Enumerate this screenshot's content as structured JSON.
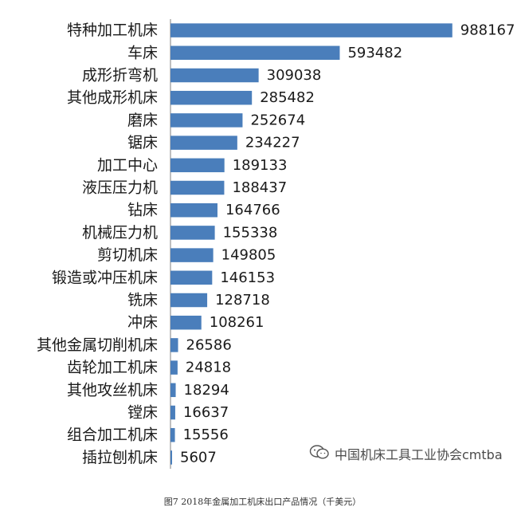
{
  "chart_data": {
    "type": "bar",
    "orientation": "horizontal",
    "categories": [
      "特种加工机床",
      "车床",
      "成形折弯机",
      "其他成形机床",
      "磨床",
      "锯床",
      "加工中心",
      "液压压力机",
      "钻床",
      "机械压力机",
      "剪切机床",
      "锻造或冲压机床",
      "铣床",
      "冲床",
      "其他金属切削机床",
      "齿轮加工机床",
      "其他攻丝机床",
      "镗床",
      "组合加工机床",
      "插拉刨机床"
    ],
    "values": [
      988167,
      593482,
      309038,
      285482,
      252674,
      234227,
      189133,
      188437,
      164766,
      155338,
      149805,
      146153,
      128718,
      108261,
      26586,
      24818,
      18294,
      16637,
      15556,
      5607
    ],
    "bar_color": "#4a7ebb",
    "xlim": [
      0,
      1000000
    ],
    "grid": false
  },
  "caption": "图7 2018年金属加工机床出口产品情况（千美元）",
  "watermark": "中国机床工具工业协会cmtba",
  "watermark_icon": "wechat-icon"
}
